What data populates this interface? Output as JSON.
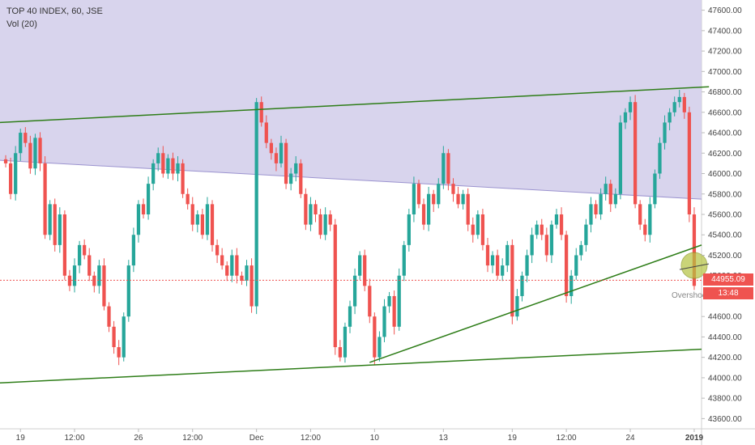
{
  "header": {
    "symbol_line": "TOP 40 INDEX, 60, JSE",
    "indicator": "Vol (20)"
  },
  "badges": {
    "last_price": "44955.09",
    "countdown": "13:48"
  },
  "colors": {
    "up": "#26a69a",
    "down": "#ef5350",
    "channel_fill": "#d1cdea",
    "trendline": "#2e7d18",
    "badge_price": "#ef5350",
    "badge_time": "#ef5350",
    "highlight": "#b5c23f"
  },
  "annotation": "Overshoot ?",
  "chart_data": {
    "type": "candlestick",
    "title": "TOP 40 INDEX, 60, JSE",
    "ylim": [
      43500,
      47700
    ],
    "y_ticks": [
      43600,
      43800,
      44000,
      44200,
      44400,
      44600,
      44800,
      45000,
      45200,
      45400,
      45600,
      45800,
      46000,
      46200,
      46400,
      46600,
      46800,
      47000,
      47200,
      47400,
      47600
    ],
    "y_tick_labels": [
      "43600.00",
      "43800.00",
      "44000.00",
      "44200.00",
      "44400.00",
      "44600.00",
      "44800.00",
      "45000.00",
      "45200.00",
      "45400.00",
      "45600.00",
      "45800.00",
      "46000.00",
      "46200.00",
      "46400.00",
      "46600.00",
      "46800.00",
      "47000.00",
      "47200.00",
      "47400.00",
      "47600.00"
    ],
    "x_ticks": [
      {
        "label": "19",
        "bar": 3
      },
      {
        "label": "12:00",
        "bar": 14
      },
      {
        "label": "26",
        "bar": 27
      },
      {
        "label": "12:00",
        "bar": 38
      },
      {
        "label": "Dec",
        "bar": 51
      },
      {
        "label": "12:00",
        "bar": 62
      },
      {
        "label": "10",
        "bar": 75
      },
      {
        "label": "13",
        "bar": 89
      },
      {
        "label": "19",
        "bar": 103
      },
      {
        "label": "12:00",
        "bar": 114
      },
      {
        "label": "24",
        "bar": 127
      },
      {
        "label": "2019",
        "bar": 140
      }
    ],
    "last_price": 44955.09,
    "price_line": 44955.09,
    "series": [
      {
        "name": "TOP 40 INDEX",
        "close": [
          46100,
          45800,
          46200,
          46400,
          46300,
          46050,
          46350,
          46100,
          45400,
          45700,
          45300,
          45600,
          45000,
          44900,
          45100,
          45300,
          45200,
          45000,
          44900,
          45100,
          44700,
          44500,
          44300,
          44200,
          44600,
          45100,
          45400,
          45700,
          45600,
          45900,
          46100,
          46200,
          46000,
          46150,
          46000,
          46100,
          45800,
          45700,
          45500,
          45600,
          45400,
          45700,
          45300,
          45200,
          45100,
          45000,
          45200,
          45000,
          44950,
          45100,
          44700,
          46700,
          46500,
          46300,
          46200,
          46100,
          46300,
          45900,
          46000,
          46100,
          45800,
          45500,
          45700,
          45600,
          45400,
          45600,
          45500,
          44300,
          44200,
          44500,
          44700,
          45000,
          45200,
          44900,
          44600,
          44200,
          44400,
          44700,
          44800,
          44500,
          45000,
          45300,
          45600,
          45900,
          45700,
          45500,
          45800,
          45700,
          45900,
          46200,
          45900,
          45800,
          45700,
          45800,
          45500,
          45400,
          45600,
          45300,
          45100,
          45200,
          45000,
          45100,
          45300,
          44600,
          44800,
          45000,
          45200,
          45400,
          45500,
          45400,
          45200,
          45500,
          45600,
          45400,
          44800,
          45000,
          45200,
          45300,
          45500,
          45700,
          45600,
          45800,
          45900,
          45700,
          45800,
          46500,
          46600,
          46700,
          45700,
          45500,
          45400,
          45700,
          46000,
          46300,
          46500,
          46600,
          46700,
          46750,
          46600,
          45600,
          44900
        ]
      }
    ],
    "channel_upper": {
      "x": [
        0,
        143
      ],
      "y": [
        46500,
        46850
      ]
    },
    "channel_lower": {
      "x": [
        0,
        143
      ],
      "y": [
        46130,
        45750
      ]
    },
    "support_line": {
      "x": [
        0,
        143
      ],
      "y": [
        43950,
        44280
      ]
    },
    "rising_line": {
      "x": [
        74,
        143
      ],
      "y": [
        44150,
        45300
      ]
    },
    "highlight_circle": {
      "bar": 140,
      "price": 45100
    }
  }
}
